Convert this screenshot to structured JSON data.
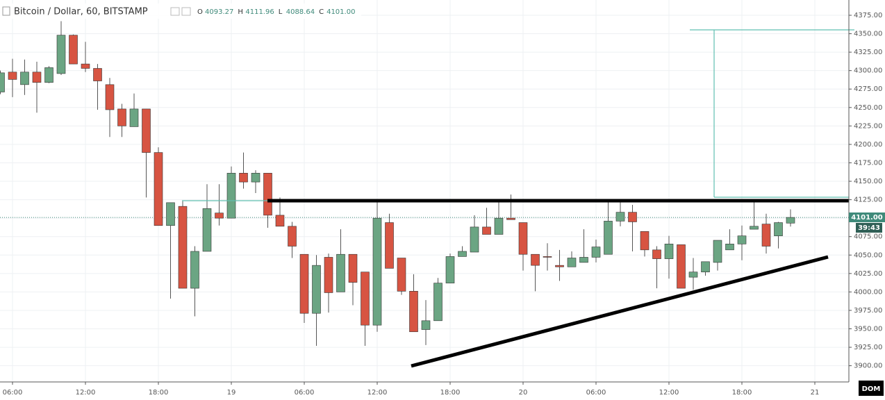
{
  "chart_data": {
    "type": "candlestick",
    "title": "Bitcoin / Dollar, 60, BITSTAMP",
    "ohlc_header": {
      "o_label": "O",
      "o": "4093.27",
      "h_label": "H",
      "h": "4111.96",
      "l_label": "L",
      "l": "4088.64",
      "c_label": "C",
      "c": "4101.00"
    },
    "price_label": "4101.00",
    "countdown": "39:43",
    "dom_button": "DOM",
    "up_color": "#6ba583",
    "down_color": "#d75442",
    "categories": [
      null,
      "06:00",
      null,
      null,
      null,
      null,
      null,
      "12:00",
      null,
      null,
      null,
      null,
      null,
      "18:00",
      null,
      null,
      null,
      null,
      null,
      "19",
      null,
      null,
      null,
      null,
      null,
      "06:00",
      null,
      null,
      null,
      null,
      null,
      "12:00",
      null,
      null,
      null,
      null,
      null,
      "18:00",
      null,
      null,
      null,
      null,
      null,
      "20",
      null,
      null,
      null,
      null,
      null,
      "06:00",
      null,
      null,
      null,
      null,
      null,
      "12:00",
      null,
      null,
      null,
      null,
      null,
      "18:00",
      null,
      null,
      null,
      null,
      null,
      "21"
    ],
    "open": [
      4271,
      4298,
      4281,
      4298,
      4284,
      4296,
      4348,
      4309,
      4303,
      4281,
      4248,
      4224,
      4248,
      4189,
      4090,
      4116,
      4005,
      4055,
      4107,
      4100,
      4161,
      4149,
      4161,
      4104,
      4089,
      4051,
      3971,
      4047,
      4000,
      4051,
      4027,
      3955,
      4094,
      4046,
      4001,
      3949,
      3961,
      4012,
      4048,
      4054,
      4088,
      4078,
      4100,
      4094,
      4051,
      4048,
      4036,
      4034,
      4040,
      4047,
      4051,
      4096,
      4108,
      4082,
      4057,
      4045,
      4064,
      4020,
      4027,
      4040,
      4057,
      4065,
      4085,
      4092,
      4076,
      4093.27,
      null,
      null
    ],
    "high": [
      4300,
      4316,
      4315,
      4312,
      4306,
      4367,
      4349,
      4339,
      4309,
      4290,
      4255,
      4269,
      4248,
      4196,
      4121,
      4123,
      4062,
      4146,
      4146,
      4170,
      4189,
      4165,
      4161,
      4128,
      4095,
      4051,
      4050,
      4052,
      4085,
      4051,
      4027,
      4125,
      4106,
      4046,
      4024,
      3989,
      4019,
      4052,
      4062,
      4104,
      4114,
      4125,
      4132,
      4094,
      4051,
      4066,
      4057,
      4055,
      4085,
      4071,
      4123,
      4123,
      4118,
      4082,
      4062,
      4076,
      4064,
      4046,
      4041,
      4070,
      4085,
      4090,
      4123,
      4106,
      4095,
      4111.96,
      null,
      null
    ],
    "low": [
      4268,
      4264,
      4267,
      4243,
      4283,
      4294,
      4309,
      4298,
      4247,
      4210,
      4210,
      4224,
      4128,
      4090,
      3991,
      4005,
      3967,
      4055,
      4090,
      4100,
      4140,
      4134,
      4087,
      4089,
      4046,
      3958,
      3927,
      3972,
      4000,
      3982,
      3927,
      3946,
      4032,
      3996,
      3946,
      3928,
      3961,
      4012,
      4048,
      4054,
      4078,
      4078,
      4098,
      4029,
      4001,
      4029,
      4015,
      4034,
      4040,
      4040,
      4051,
      4089,
      4055,
      4048,
      4005,
      4018,
      4005,
      4003,
      4022,
      4029,
      4057,
      4043,
      4085,
      4052,
      4059,
      4088.64,
      null,
      null
    ],
    "close": [
      4297,
      4288,
      4298,
      4284,
      4304,
      4348,
      4309,
      4303,
      4286,
      4247,
      4225,
      4248,
      4189,
      4090,
      4121,
      4005,
      4055,
      4113,
      4100,
      4161,
      4149,
      4161,
      4104,
      4089,
      4062,
      3971,
      4036,
      3999,
      4051,
      4013,
      3955,
      4100,
      4032,
      4001,
      3946,
      3961,
      4012,
      4048,
      4055,
      4088,
      4078,
      4100,
      4098,
      4051,
      4036,
      4047,
      4034,
      4046,
      4047,
      4061,
      4096,
      4108,
      4095,
      4057,
      4045,
      4065,
      4005,
      4027,
      4041,
      4070,
      4065,
      4076,
      4089,
      4062,
      4094,
      4101.0,
      null,
      null
    ],
    "ylim": [
      3878,
      4395.7
    ],
    "yticks": [
      {
        "value": 3900,
        "label": "3900.00"
      },
      {
        "value": 3925,
        "label": "3925.00"
      },
      {
        "value": 3950,
        "label": "3950.00"
      },
      {
        "value": 3975,
        "label": "3975.00"
      },
      {
        "value": 4000,
        "label": "4000.00"
      },
      {
        "value": 4025,
        "label": "4025.00"
      },
      {
        "value": 4050,
        "label": "4050.00"
      },
      {
        "value": 4075,
        "label": "4075.00"
      },
      {
        "value": 4100,
        "label": "4100.00"
      },
      {
        "value": 4125,
        "label": "4125.00"
      },
      {
        "value": 4150,
        "label": "4150.00"
      },
      {
        "value": 4175,
        "label": "4175.00"
      },
      {
        "value": 4200,
        "label": "4200.00"
      },
      {
        "value": 4225,
        "label": "4225.00"
      },
      {
        "value": 4250,
        "label": "4250.00"
      },
      {
        "value": 4275,
        "label": "4275.00"
      },
      {
        "value": 4300,
        "label": "4300.00"
      },
      {
        "value": 4325,
        "label": "4325.00"
      },
      {
        "value": 4350,
        "label": "4350.00"
      },
      {
        "value": 4375,
        "label": "4375.00"
      }
    ],
    "grid": true
  }
}
